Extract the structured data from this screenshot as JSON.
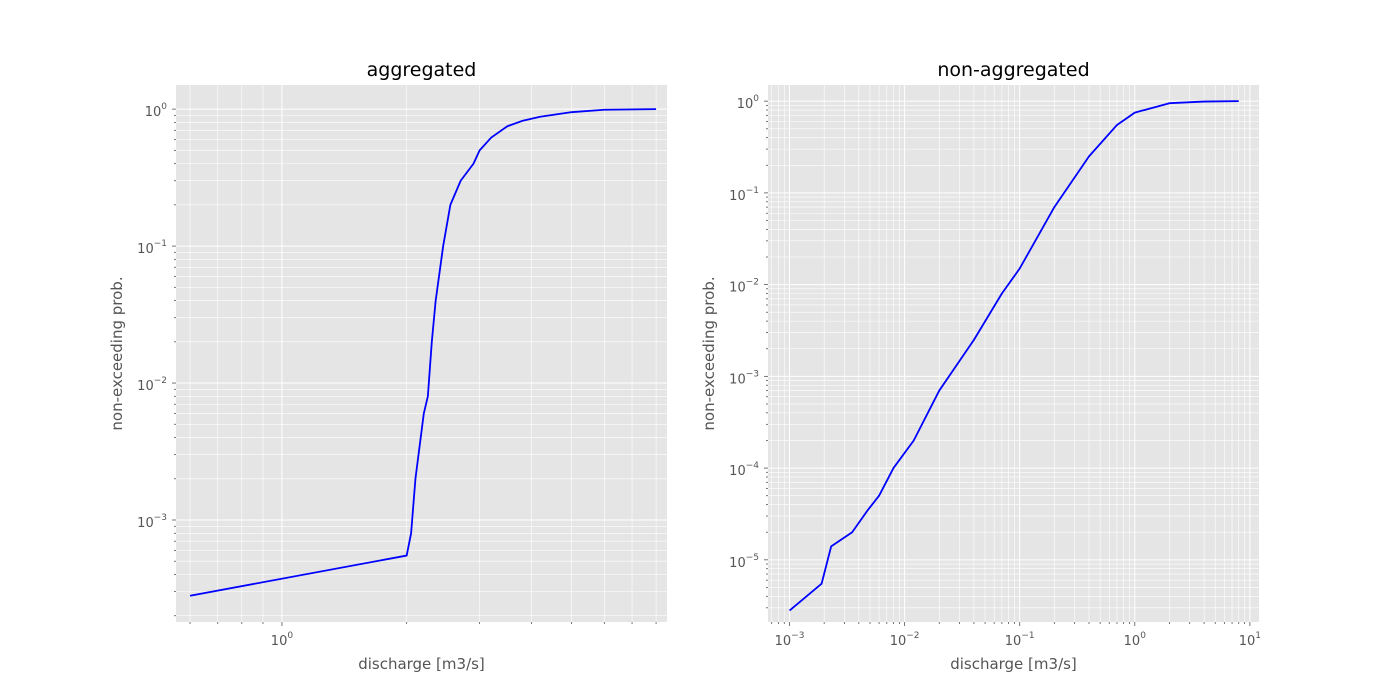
{
  "chart_data": [
    {
      "type": "line",
      "title": "aggregated",
      "xlabel": "discharge [m3/s]",
      "ylabel": "non-exceeding prob.",
      "xscale": "log",
      "yscale": "log",
      "xlim": [
        0.555,
        8.5
      ],
      "ylim": [
        0.00018,
        1.5
      ],
      "grid": true,
      "major_xticks": [
        {
          "value": 1,
          "label": "10",
          "exp": "0"
        }
      ],
      "major_yticks": [
        {
          "value": 0.001,
          "label": "10",
          "exp": "−3"
        },
        {
          "value": 0.01,
          "label": "10",
          "exp": "−2"
        },
        {
          "value": 0.1,
          "label": "10",
          "exp": "−1"
        },
        {
          "value": 1,
          "label": "10",
          "exp": "0"
        }
      ],
      "line_color": "#0000ff",
      "x": [
        0.6,
        2.0,
        2.05,
        2.1,
        2.2,
        2.25,
        2.3,
        2.35,
        2.45,
        2.55,
        2.7,
        2.9,
        3.0,
        3.2,
        3.5,
        3.8,
        4.2,
        5.0,
        6.0,
        8.0
      ],
      "y": [
        0.00028,
        0.00055,
        0.0008,
        0.002,
        0.006,
        0.008,
        0.02,
        0.04,
        0.1,
        0.2,
        0.3,
        0.4,
        0.5,
        0.62,
        0.75,
        0.82,
        0.88,
        0.95,
        0.99,
        1.0
      ]
    },
    {
      "type": "line",
      "title": "non-aggregated",
      "xlabel": "discharge [m3/s]",
      "ylabel": "non-exceeding prob.",
      "xscale": "log",
      "yscale": "log",
      "xlim": [
        0.00065,
        12
      ],
      "ylim": [
        2.1e-06,
        1.5
      ],
      "grid": true,
      "major_xticks": [
        {
          "value": 0.001,
          "label": "10",
          "exp": "−3"
        },
        {
          "value": 0.01,
          "label": "10",
          "exp": "−2"
        },
        {
          "value": 0.1,
          "label": "10",
          "exp": "−1"
        },
        {
          "value": 1,
          "label": "10",
          "exp": "0"
        },
        {
          "value": 10,
          "label": "10",
          "exp": "1"
        }
      ],
      "major_yticks": [
        {
          "value": 1e-05,
          "label": "10",
          "exp": "−5"
        },
        {
          "value": 0.0001,
          "label": "10",
          "exp": "−4"
        },
        {
          "value": 0.001,
          "label": "10",
          "exp": "−3"
        },
        {
          "value": 0.01,
          "label": "10",
          "exp": "−2"
        },
        {
          "value": 0.1,
          "label": "10",
          "exp": "−1"
        },
        {
          "value": 1,
          "label": "10",
          "exp": "0"
        }
      ],
      "line_color": "#0000ff",
      "x": [
        0.001,
        0.0019,
        0.0023,
        0.0035,
        0.0048,
        0.006,
        0.008,
        0.012,
        0.02,
        0.04,
        0.07,
        0.1,
        0.2,
        0.4,
        0.7,
        1.0,
        2.0,
        4.0,
        8.0
      ],
      "y": [
        2.8e-06,
        5.5e-06,
        1.4e-05,
        2e-05,
        3.5e-05,
        5e-05,
        0.0001,
        0.0002,
        0.0007,
        0.0025,
        0.008,
        0.015,
        0.07,
        0.25,
        0.55,
        0.75,
        0.95,
        0.99,
        1.0
      ]
    }
  ]
}
